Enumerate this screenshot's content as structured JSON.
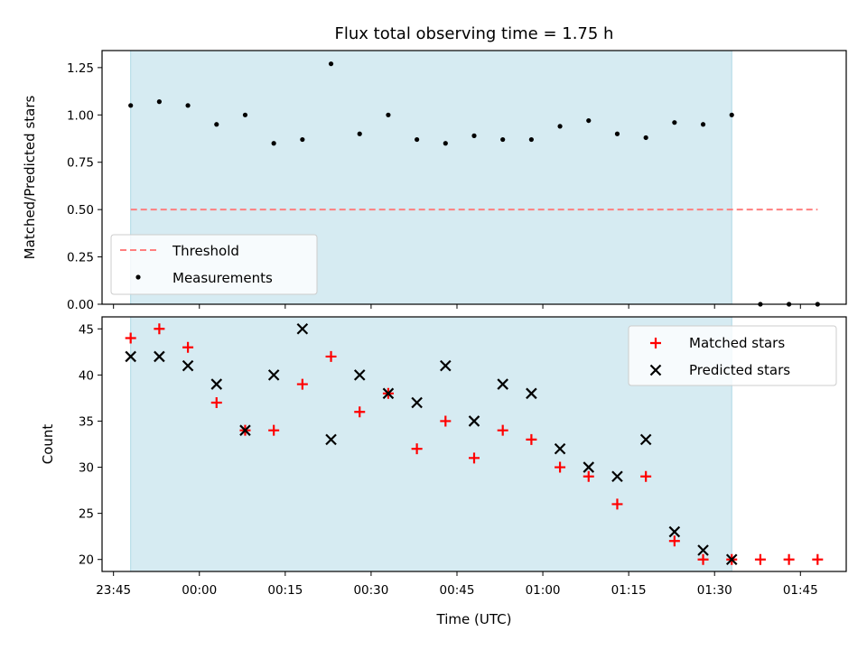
{
  "title": "Flux total observing time = 1.75 h",
  "colors": {
    "span": "#add8e6",
    "threshold": "#ff7f7f",
    "measurement": "#000000",
    "matched": "#ff0000",
    "predicted": "#000000"
  },
  "chart_data": [
    {
      "type": "scatter",
      "ylabel": "Matched/Predicted stars",
      "xlabel": "",
      "xlim": [
        "23:43",
        "01:53"
      ],
      "ylim": [
        0,
        1.34
      ],
      "yticks": [
        "0.00",
        "0.25",
        "0.50",
        "0.75",
        "1.00",
        "1.25"
      ],
      "shaded_span": [
        "23:48",
        "01:33"
      ],
      "legend_position": "lower-left",
      "threshold": {
        "name": "Threshold",
        "y": 0.5,
        "x_start": "23:48",
        "x_end": "01:48"
      },
      "series": [
        {
          "name": "Measurements",
          "marker": "dot",
          "x": [
            "23:48",
            "23:53",
            "23:58",
            "00:03",
            "00:08",
            "00:13",
            "00:18",
            "00:23",
            "00:28",
            "00:33",
            "00:38",
            "00:43",
            "00:48",
            "00:53",
            "00:58",
            "01:03",
            "01:08",
            "01:13",
            "01:18",
            "01:23",
            "01:28",
            "01:33",
            "01:38",
            "01:43",
            "01:48"
          ],
          "y": [
            1.05,
            1.07,
            1.05,
            0.95,
            1.0,
            0.85,
            0.87,
            1.27,
            0.9,
            1.0,
            0.87,
            0.85,
            0.89,
            0.87,
            0.87,
            0.94,
            0.97,
            0.9,
            0.88,
            0.96,
            0.95,
            1.0,
            0.0,
            0.0,
            0.0
          ]
        }
      ]
    },
    {
      "type": "scatter",
      "ylabel": "Count",
      "xlabel": "Time (UTC)",
      "xlim": [
        "23:43",
        "01:53"
      ],
      "ylim": [
        18.7,
        46.3
      ],
      "yticks": [
        "20",
        "25",
        "30",
        "35",
        "40",
        "45"
      ],
      "xticks": [
        "23:45",
        "00:00",
        "00:15",
        "00:30",
        "00:45",
        "01:00",
        "01:15",
        "01:30",
        "01:45"
      ],
      "shaded_span": [
        "23:48",
        "01:33"
      ],
      "legend_position": "upper-right",
      "series": [
        {
          "name": "Matched stars",
          "marker": "plus",
          "x": [
            "23:48",
            "23:53",
            "23:58",
            "00:03",
            "00:08",
            "00:13",
            "00:18",
            "00:23",
            "00:28",
            "00:33",
            "00:38",
            "00:43",
            "00:48",
            "00:53",
            "00:58",
            "01:03",
            "01:08",
            "01:13",
            "01:18",
            "01:23",
            "01:28",
            "01:33",
            "01:38",
            "01:43",
            "01:48"
          ],
          "y": [
            44,
            45,
            43,
            37,
            34,
            34,
            39,
            42,
            36,
            38,
            32,
            35,
            31,
            34,
            33,
            30,
            29,
            26,
            29,
            22,
            20,
            20,
            20,
            20,
            20
          ]
        },
        {
          "name": "Predicted stars",
          "marker": "x",
          "x": [
            "23:48",
            "23:53",
            "23:58",
            "00:03",
            "00:08",
            "00:13",
            "00:18",
            "00:23",
            "00:28",
            "00:33",
            "00:38",
            "00:43",
            "00:48",
            "00:53",
            "00:58",
            "01:03",
            "01:08",
            "01:13",
            "01:18",
            "01:23",
            "01:28",
            "01:33"
          ],
          "y": [
            42,
            42,
            41,
            39,
            34,
            40,
            45,
            33,
            40,
            38,
            37,
            41,
            35,
            39,
            38,
            32,
            30,
            29,
            33,
            23,
            21,
            20
          ]
        }
      ]
    }
  ]
}
